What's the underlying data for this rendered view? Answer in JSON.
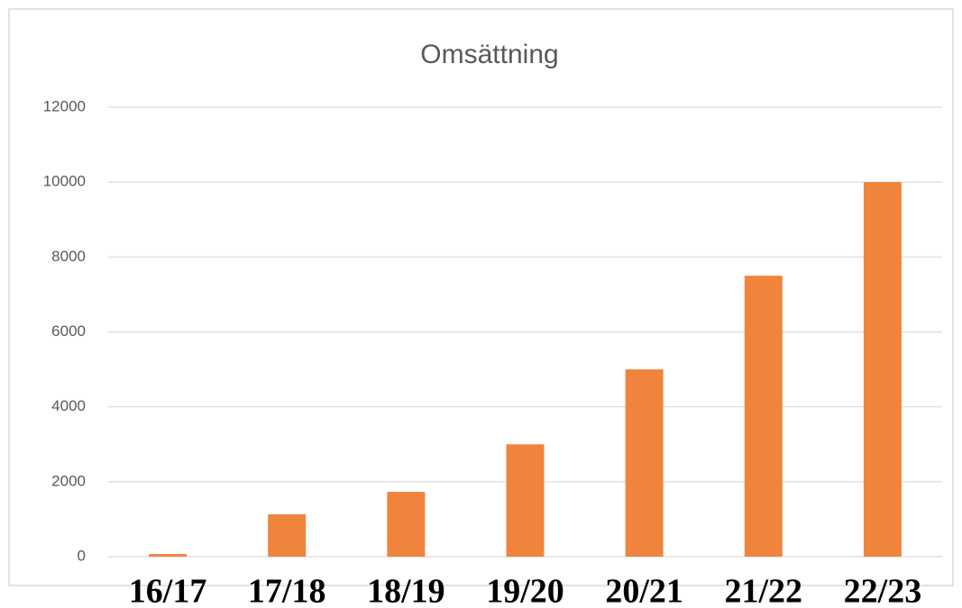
{
  "chart_data": {
    "type": "bar",
    "title": "Omsättning",
    "categories": [
      "16/17",
      "17/18",
      "18/19",
      "19/20",
      "20/21",
      "21/22",
      "22/23"
    ],
    "values": [
      70,
      1130,
      1730,
      3000,
      5000,
      7500,
      10000
    ],
    "color": "#f0843c",
    "ylim": [
      0,
      12000
    ],
    "yticks": [
      0,
      2000,
      4000,
      6000,
      8000,
      10000,
      12000
    ],
    "grid": true
  }
}
